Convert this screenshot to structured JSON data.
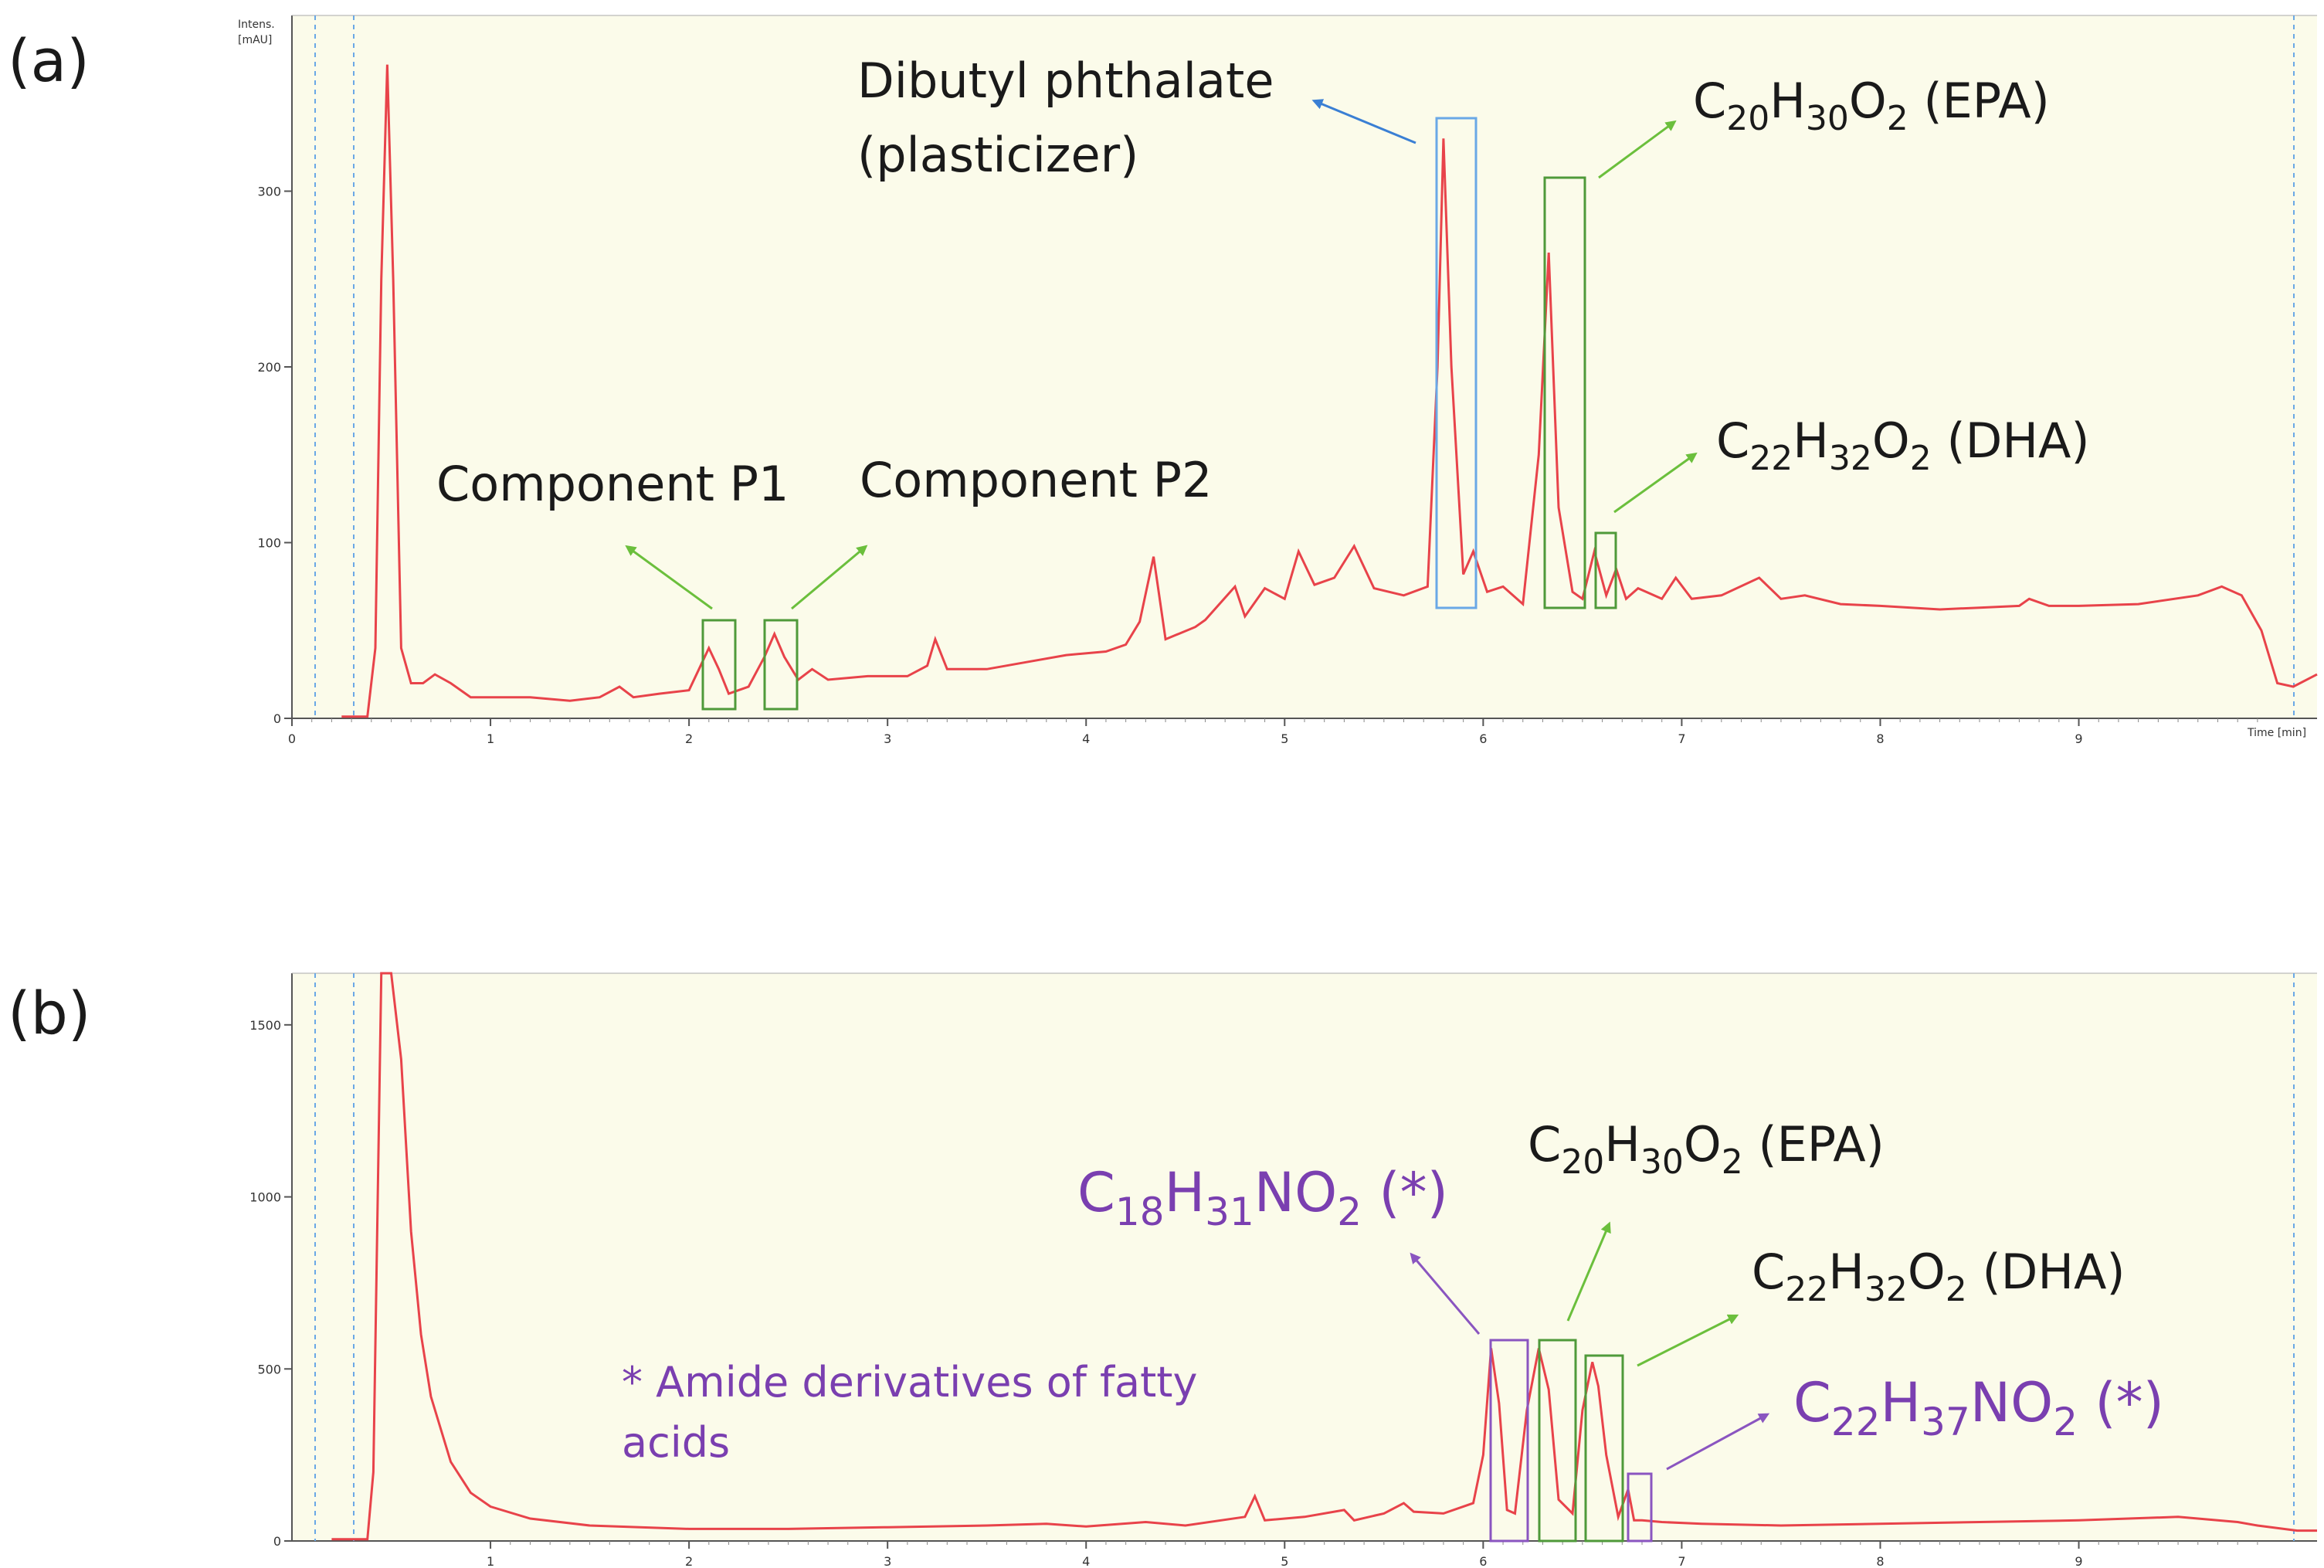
{
  "colors": {
    "plot_bg": "#fbfbea",
    "trace": "#e8434a",
    "green": "#4f9a3a",
    "blue": "#6aa8e6",
    "purple": "#8a55c0",
    "arrow_green": "#6bbf3c",
    "arrow_blue": "#3a7fd4"
  },
  "chart_data": [
    {
      "type": "line",
      "panel_label": "(a)",
      "y_axis_title": "Intens.",
      "y_axis_unit": "[mAU]",
      "x_axis_title": "Time [min]",
      "xlim": [
        0,
        10.2
      ],
      "ylim": [
        0,
        400
      ],
      "xticks": [
        0,
        1,
        2,
        3,
        4,
        5,
        6,
        7,
        8,
        9
      ],
      "yticks": [
        0,
        100,
        200,
        300
      ],
      "series": [
        {
          "x": [
            0.25,
            0.38,
            0.42,
            0.45,
            0.48,
            0.51,
            0.55,
            0.6,
            0.66,
            0.72,
            0.8,
            0.9,
            1.0,
            1.2,
            1.4,
            1.55,
            1.65,
            1.72,
            1.85,
            2.0,
            2.05,
            2.1,
            2.15,
            2.2,
            2.3,
            2.38,
            2.43,
            2.48,
            2.55,
            2.62,
            2.7,
            2.9,
            3.1,
            3.2,
            3.24,
            3.3,
            3.5,
            3.7,
            3.9,
            4.1,
            4.2,
            4.27,
            4.34,
            4.4,
            4.55,
            4.6,
            4.75,
            4.8,
            4.9,
            5.0,
            5.07,
            5.15,
            5.25,
            5.35,
            5.45,
            5.6,
            5.72,
            5.77,
            5.8,
            5.84,
            5.9,
            5.95,
            6.02,
            6.1,
            6.2,
            6.28,
            6.33,
            6.38,
            6.45,
            6.5,
            6.56,
            6.62,
            6.67,
            6.72,
            6.78,
            6.9,
            6.97,
            7.05,
            7.2,
            7.39,
            7.5,
            7.62,
            7.8,
            8.0,
            8.3,
            8.5,
            8.7,
            8.75,
            8.85,
            9.0,
            9.3,
            9.6,
            9.72,
            9.82,
            9.92,
            10.0,
            10.08,
            10.2
          ],
          "y": [
            1,
            1,
            40,
            250,
            372,
            250,
            40,
            20,
            20,
            25,
            20,
            12,
            12,
            12,
            10,
            12,
            18,
            12,
            14,
            16,
            28,
            40,
            28,
            14,
            18,
            35,
            48,
            35,
            22,
            28,
            22,
            24,
            24,
            30,
            45,
            28,
            28,
            32,
            36,
            38,
            42,
            55,
            92,
            45,
            52,
            56,
            75,
            58,
            74,
            68,
            95,
            76,
            80,
            98,
            74,
            70,
            75,
            200,
            330,
            200,
            82,
            95,
            72,
            75,
            65,
            150,
            265,
            120,
            72,
            68,
            95,
            70,
            85,
            68,
            74,
            68,
            80,
            68,
            70,
            80,
            68,
            70,
            65,
            64,
            62,
            63,
            64,
            68,
            64,
            64,
            65,
            70,
            75,
            70,
            50,
            20,
            18,
            25
          ]
        }
      ]
    },
    {
      "type": "line",
      "panel_label": "(b)",
      "xlim": [
        0,
        10.2
      ],
      "ylim": [
        0,
        1650
      ],
      "xticks": [
        1,
        2,
        3,
        4,
        5,
        6,
        7,
        8,
        9
      ],
      "yticks": [
        0,
        500,
        1000,
        1500
      ],
      "series": [
        {
          "x": [
            0.2,
            0.38,
            0.41,
            0.45,
            0.5,
            0.55,
            0.6,
            0.65,
            0.7,
            0.8,
            0.9,
            1.0,
            1.2,
            1.5,
            2.0,
            2.5,
            3.0,
            3.5,
            3.8,
            4.0,
            4.3,
            4.5,
            4.8,
            4.85,
            4.9,
            5.1,
            5.3,
            5.35,
            5.5,
            5.6,
            5.65,
            5.8,
            5.95,
            6.0,
            6.04,
            6.08,
            6.12,
            6.16,
            6.22,
            6.28,
            6.33,
            6.38,
            6.45,
            6.5,
            6.55,
            6.58,
            6.62,
            6.68,
            6.73,
            6.76,
            6.8,
            6.9,
            7.1,
            7.5,
            8.0,
            8.5,
            9.0,
            9.5,
            9.8,
            9.9,
            10.1,
            10.2
          ],
          "y": [
            5,
            5,
            200,
            1650,
            1650,
            1400,
            900,
            600,
            420,
            230,
            140,
            100,
            65,
            45,
            35,
            35,
            40,
            45,
            50,
            42,
            55,
            45,
            70,
            130,
            60,
            70,
            90,
            60,
            80,
            110,
            85,
            80,
            110,
            250,
            560,
            400,
            90,
            80,
            380,
            560,
            440,
            120,
            80,
            380,
            520,
            450,
            250,
            70,
            150,
            60,
            60,
            55,
            50,
            45,
            50,
            55,
            60,
            70,
            55,
            45,
            30,
            30
          ]
        }
      ]
    }
  ],
  "annotations": {
    "a": {
      "p1": "Component P1",
      "p2": "Component P2",
      "dbp_line1": "Dibutyl phthalate",
      "dbp_line2": "(plasticizer)",
      "epa_C": "C",
      "epa_Csub": "20",
      "epa_H": "H",
      "epa_Hsub": "30",
      "epa_O": "O",
      "epa_Osub": "2",
      "epa_tail": " (EPA)",
      "dha_C": "C",
      "dha_Csub": "22",
      "dha_H": "H",
      "dha_Hsub": "32",
      "dha_O": "O",
      "dha_Osub": "2",
      "dha_tail": " (DHA)"
    },
    "b": {
      "epa_C": "C",
      "epa_Csub": "20",
      "epa_H": "H",
      "epa_Hsub": "30",
      "epa_O": "O",
      "epa_Osub": "2",
      "epa_tail": " (EPA)",
      "dha_C": "C",
      "dha_Csub": "22",
      "dha_H": "H",
      "dha_Hsub": "32",
      "dha_O": "O",
      "dha_Osub": "2",
      "dha_tail": " (DHA)",
      "am1_C": "C",
      "am1_Csub": "18",
      "am1_H": "H",
      "am1_Hsub": "31",
      "am1_N": "NO",
      "am1_Osub": "2",
      "am1_tail": " (*)",
      "am2_C": "C",
      "am2_Csub": "22",
      "am2_H": "H",
      "am2_Hsub": "37",
      "am2_N": "NO",
      "am2_Osub": "2",
      "am2_tail": " (*)",
      "note_line1": "* Amide derivatives of fatty",
      "note_line2": "acids"
    }
  }
}
